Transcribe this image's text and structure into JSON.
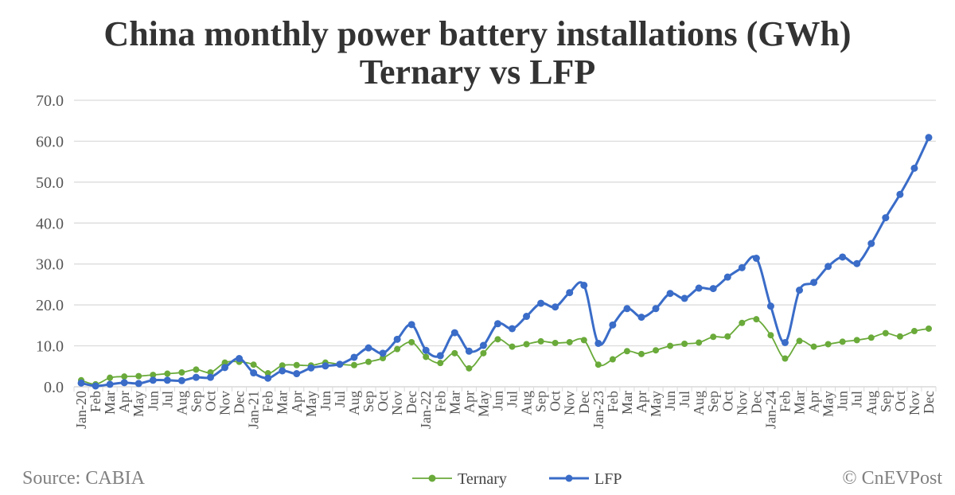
{
  "chart_data": {
    "type": "line",
    "title": "China monthly power battery installations (GWh)",
    "subtitle": "Ternary vs LFP",
    "xlabel": "",
    "ylabel": "",
    "ylim": [
      0,
      70
    ],
    "yticks": [
      "0.0",
      "10.0",
      "20.0",
      "30.0",
      "40.0",
      "50.0",
      "60.0",
      "70.0"
    ],
    "grid": true,
    "legend": "bottom",
    "categories": [
      "Jan-20",
      "Feb",
      "Mar",
      "Apr",
      "May",
      "Jun",
      "Jul",
      "Aug",
      "Sep",
      "Oct",
      "Nov",
      "Dec",
      "Jan-21",
      "Feb",
      "Mar",
      "Apr",
      "May",
      "Jun",
      "Jul",
      "Aug",
      "Sep",
      "Oct",
      "Nov",
      "Dec",
      "Jan-22",
      "Feb",
      "Mar",
      "Apr",
      "May",
      "Jun",
      "Jul",
      "Aug",
      "Sep",
      "Oct",
      "Nov",
      "Dec",
      "Jan-23",
      "Feb",
      "Mar",
      "Apr",
      "May",
      "Jun",
      "Jul",
      "Aug",
      "Sep",
      "Oct",
      "Nov",
      "Dec",
      "Jan-24",
      "Feb",
      "Mar",
      "Apr",
      "May",
      "Jun",
      "Jul",
      "Aug",
      "Sep",
      "Oct",
      "Nov",
      "Dec"
    ],
    "series": [
      {
        "name": "Ternary",
        "color": "#6aaa3a",
        "values": [
          1.6,
          0.6,
          2.2,
          2.5,
          2.6,
          2.9,
          3.2,
          3.5,
          4.2,
          3.5,
          5.9,
          6.1,
          5.4,
          3.3,
          5.2,
          5.3,
          5.2,
          5.9,
          5.5,
          5.3,
          6.1,
          7.0,
          9.2,
          10.9,
          7.3,
          5.8,
          8.2,
          4.5,
          8.2,
          11.6,
          9.8,
          10.4,
          11.1,
          10.7,
          10.9,
          11.4,
          5.4,
          6.7,
          8.7,
          8.0,
          8.9,
          10.0,
          10.5,
          10.8,
          12.2,
          12.3,
          15.6,
          16.5,
          12.6,
          6.9,
          11.2,
          9.8,
          10.4,
          11.0,
          11.4,
          12.0,
          13.1,
          12.3,
          13.6,
          14.2
        ]
      },
      {
        "name": "LFP",
        "color": "#3a6cc8",
        "values": [
          0.9,
          0.2,
          0.6,
          1.0,
          0.8,
          1.6,
          1.6,
          1.5,
          2.3,
          2.3,
          4.7,
          6.9,
          3.4,
          2.1,
          3.9,
          3.2,
          4.6,
          5.1,
          5.5,
          7.2,
          9.5,
          8.2,
          11.6,
          15.2,
          8.9,
          7.6,
          13.2,
          8.7,
          10.1,
          15.4,
          14.2,
          17.2,
          20.4,
          19.5,
          23.0,
          24.8,
          10.6,
          15.1,
          19.1,
          17.0,
          19.1,
          22.8,
          21.6,
          24.1,
          24.0,
          26.8,
          29.1,
          31.4,
          19.7,
          10.8,
          23.6,
          25.5,
          29.4,
          31.7,
          30.1,
          35.0,
          41.3,
          47.0,
          53.4,
          60.9
        ]
      }
    ]
  },
  "footer": {
    "source": "Source: CABIA",
    "credit": "© CnEVPost"
  }
}
